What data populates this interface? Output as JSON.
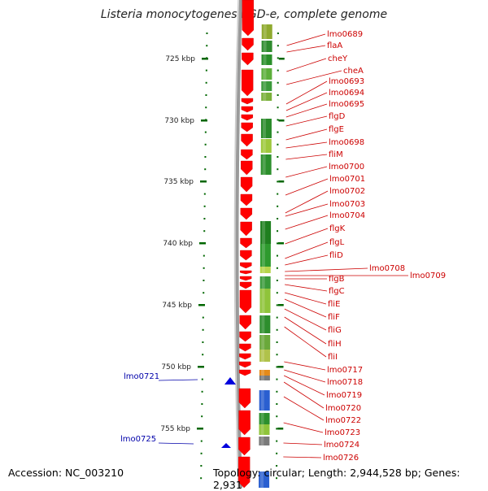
{
  "title": "Listeria monocytogenes EGD-e, complete genome",
  "accession": "Accession: NC_003210",
  "summary": "Topology: circular; Length: 2,944,528 bp; Genes: 2,931",
  "colors": {
    "forward_cds": "#ff0000",
    "reverse_cds": "#0000dd",
    "label_forward": "#cc0000",
    "label_reverse": "#0000aa",
    "tick": "#006600",
    "backbone": "#888888"
  },
  "kbp_ticks": [
    "725 kbp",
    "730 kbp",
    "735 kbp",
    "740 kbp",
    "745 kbp",
    "750 kbp",
    "755 kbp"
  ],
  "forward_labels": [
    "lmo0689",
    "flaA",
    "cheY",
    "cheA",
    "lmo0693",
    "lmo0694",
    "lmo0695",
    "flgD",
    "flgE",
    "lmo0698",
    "fliM",
    "lmo0700",
    "lmo0701",
    "lmo0702",
    "lmo0703",
    "lmo0704",
    "flgK",
    "flgL",
    "fliD",
    "lmo0708",
    "lmo0709",
    "flgB",
    "flgC",
    "fliE",
    "fliF",
    "fliG",
    "fliH",
    "fliI",
    "lmo0717",
    "lmo0718",
    "lmo0719",
    "lmo0720",
    "lmo0722",
    "lmo0723",
    "lmo0724",
    "lmo0726"
  ],
  "reverse_labels": [
    "lmo0721",
    "lmo0725"
  ]
}
